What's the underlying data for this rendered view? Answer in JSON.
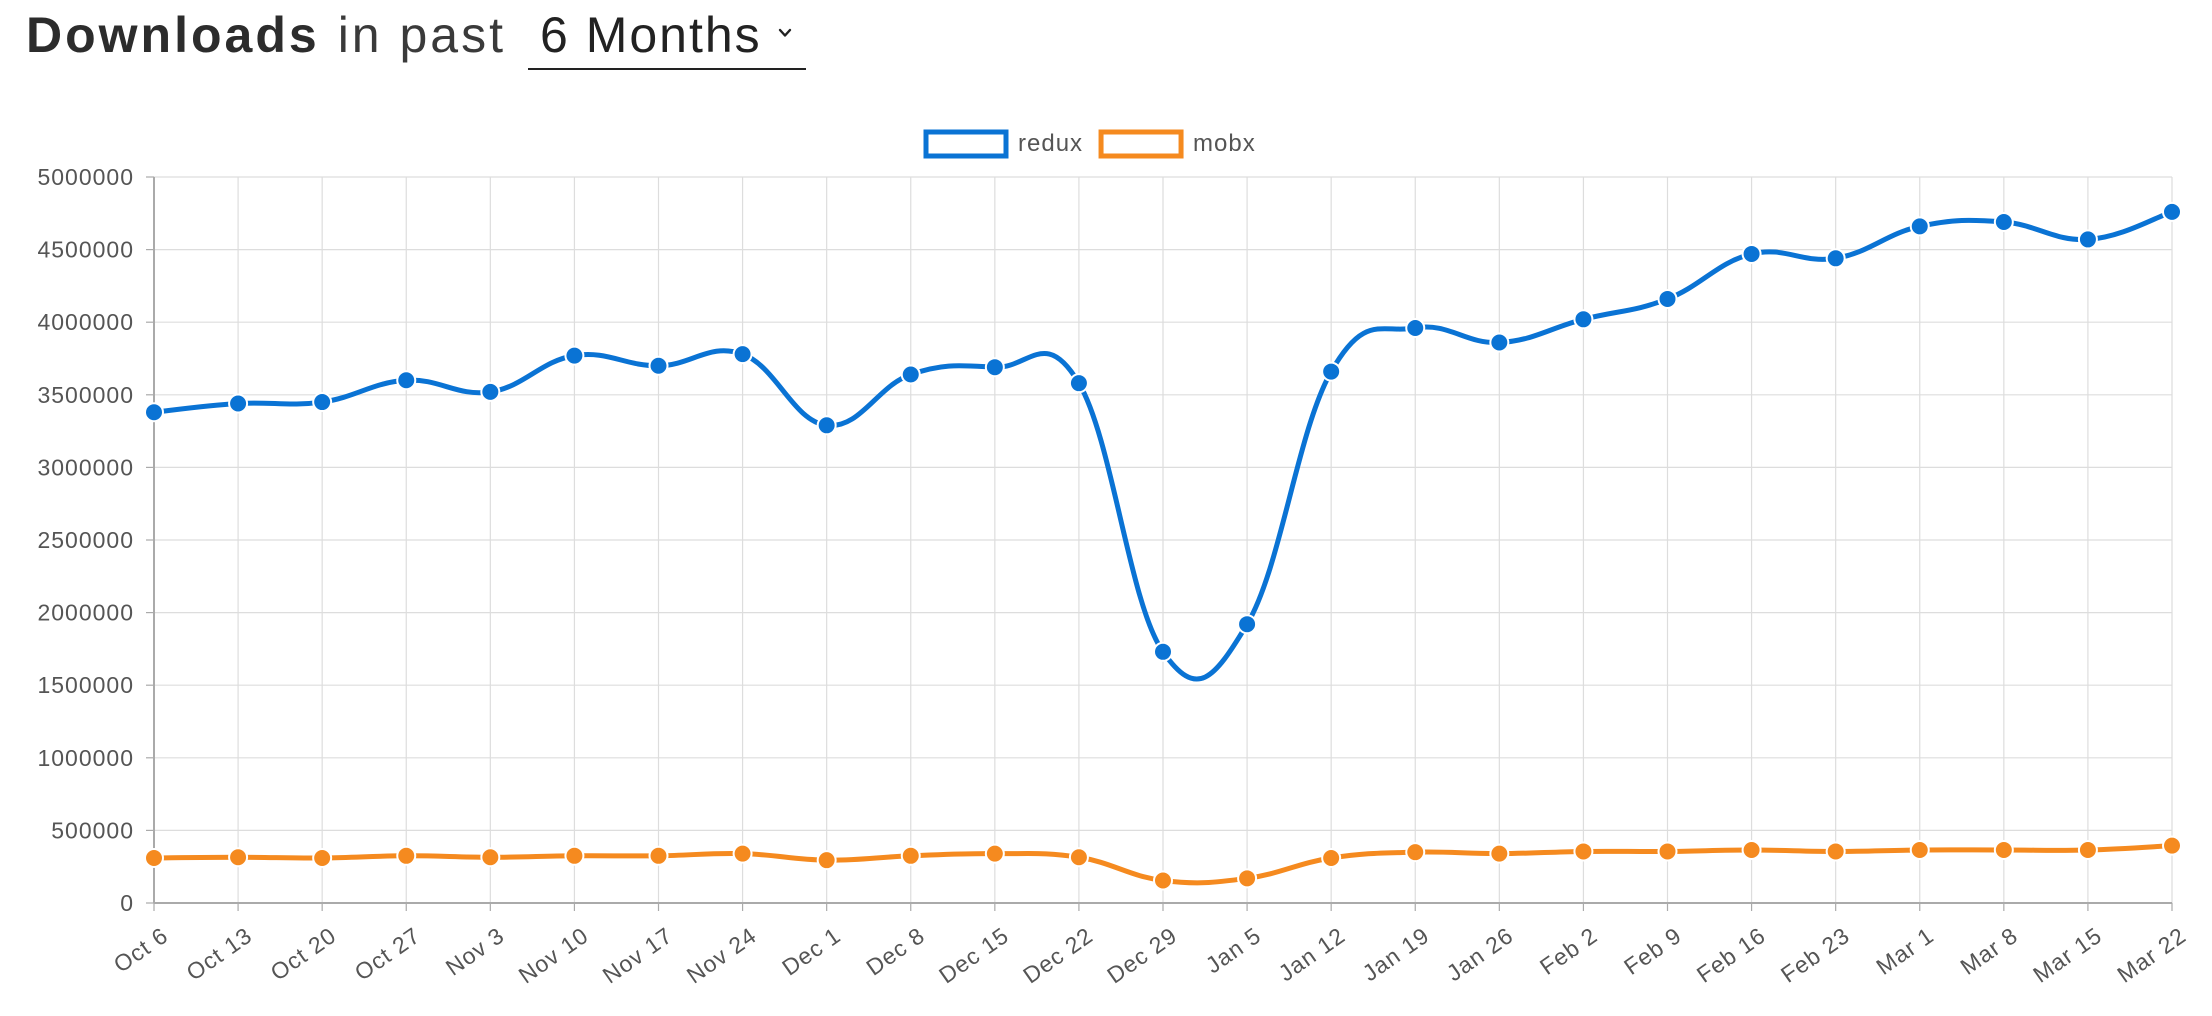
{
  "header": {
    "title_bold": "Downloads",
    "title_rest": "in past",
    "period_selected": "6 Months"
  },
  "colors": {
    "redux": "#0a73d4",
    "mobx": "#f58a1f",
    "grid": "#dddddd",
    "axis": "#aaaaaa"
  },
  "chart_data": {
    "type": "line",
    "categories": [
      "Oct 6",
      "Oct 13",
      "Oct 20",
      "Oct 27",
      "Nov 3",
      "Nov 10",
      "Nov 17",
      "Nov 24",
      "Dec 1",
      "Dec 8",
      "Dec 15",
      "Dec 22",
      "Dec 29",
      "Jan 5",
      "Jan 12",
      "Jan 19",
      "Jan 26",
      "Feb 2",
      "Feb 9",
      "Feb 16",
      "Feb 23",
      "Mar 1",
      "Mar 8",
      "Mar 15",
      "Mar 22"
    ],
    "series": [
      {
        "name": "redux",
        "color": "#0a73d4",
        "values": [
          3380000,
          3440000,
          3450000,
          3600000,
          3520000,
          3770000,
          3700000,
          3780000,
          3290000,
          3640000,
          3690000,
          3580000,
          1730000,
          1920000,
          3660000,
          3960000,
          3860000,
          4020000,
          4160000,
          4470000,
          4440000,
          4660000,
          4690000,
          4570000,
          4760000
        ]
      },
      {
        "name": "mobx",
        "color": "#f58a1f",
        "values": [
          310000,
          315000,
          310000,
          325000,
          315000,
          325000,
          325000,
          340000,
          295000,
          325000,
          340000,
          315000,
          155000,
          170000,
          310000,
          350000,
          340000,
          355000,
          355000,
          365000,
          355000,
          365000,
          365000,
          365000,
          395000
        ]
      }
    ],
    "y_ticks": [
      "0",
      "500000",
      "1000000",
      "1500000",
      "2000000",
      "2500000",
      "3000000",
      "3500000",
      "4000000",
      "4500000",
      "5000000"
    ],
    "ylim": [
      0,
      5000000
    ],
    "grid": true,
    "legend_position": "top-center",
    "xlabel": "",
    "ylabel": ""
  }
}
